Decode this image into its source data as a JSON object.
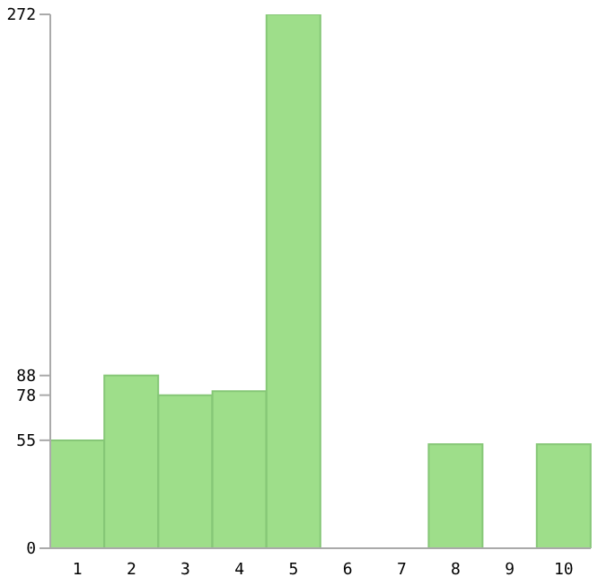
{
  "chart_data": {
    "type": "bar",
    "categories": [
      "1",
      "2",
      "3",
      "4",
      "5",
      "6",
      "7",
      "8",
      "9",
      "10"
    ],
    "values": [
      55,
      88,
      78,
      80,
      272,
      0,
      0,
      53,
      0,
      53
    ],
    "color": "#9ede8a",
    "ylim": [
      0,
      272
    ],
    "yticks": [
      0,
      55,
      78,
      88,
      272
    ],
    "grid": false
  }
}
